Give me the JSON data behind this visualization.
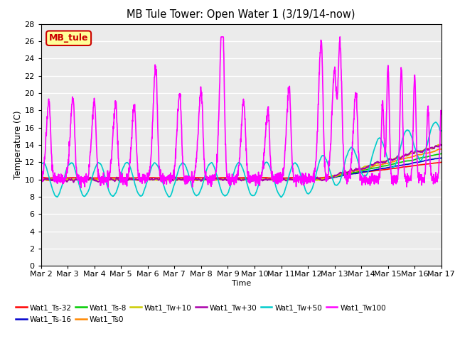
{
  "title": "MB Tule Tower: Open Water 1 (3/19/14-now)",
  "xlabel": "Time",
  "ylabel": "Temperature (C)",
  "ylim": [
    0,
    28
  ],
  "yticks": [
    0,
    2,
    4,
    6,
    8,
    10,
    12,
    14,
    16,
    18,
    20,
    22,
    24,
    26,
    28
  ],
  "xtick_labels": [
    "Mar 2",
    "Mar 3",
    "Mar 4",
    "Mar 5",
    "Mar 6",
    "Mar 7",
    "Mar 8",
    "Mar 9",
    "Mar 10",
    "Mar 11",
    "Mar 12",
    "Mar 13",
    "Mar 14",
    "Mar 15",
    "Mar 16",
    "Mar 17"
  ],
  "series_names": [
    "Wat1_Ts-32",
    "Wat1_Ts-16",
    "Wat1_Ts-8",
    "Wat1_Ts0",
    "Wat1_Tw+10",
    "Wat1_Tw+30",
    "Wat1_Tw+50",
    "Wat1_Tw100"
  ],
  "series_colors": [
    "#ff0000",
    "#0000cc",
    "#00cc00",
    "#ff8800",
    "#cccc00",
    "#aa00aa",
    "#00cccc",
    "#ff00ff"
  ],
  "series_lw": [
    1.2,
    1.2,
    1.2,
    1.2,
    1.2,
    1.2,
    1.2,
    1.2
  ],
  "legend_box_text": "MB_tule",
  "legend_box_bg": "#ffff99",
  "legend_box_border": "#cc0000",
  "bg_color": "#ffffff",
  "plot_bg_color": "#ebebeb"
}
